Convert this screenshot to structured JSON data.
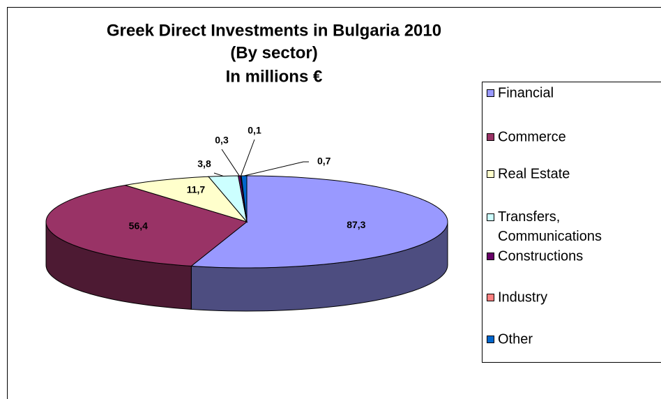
{
  "chart_data": {
    "type": "pie",
    "title": "Greek Direct Investments in Bulgaria 2010",
    "subtitle": "(By sector)",
    "unit_label": "In millions €",
    "categories": [
      "Financial",
      "Commerce",
      "Real Estate",
      "Transfers, Communications",
      "Constructions",
      "Industry",
      "Other"
    ],
    "values": [
      87.3,
      56.4,
      11.7,
      3.8,
      0.3,
      0.1,
      0.7
    ],
    "value_labels": [
      "87,3",
      "56,4",
      "11,7",
      "3,8",
      "0,3",
      "0,1",
      "0,7"
    ],
    "colors": [
      "#9999ff",
      "#993366",
      "#ffffcc",
      "#ccffff",
      "#660066",
      "#ff8080",
      "#0066cc"
    ],
    "legend": "right"
  }
}
